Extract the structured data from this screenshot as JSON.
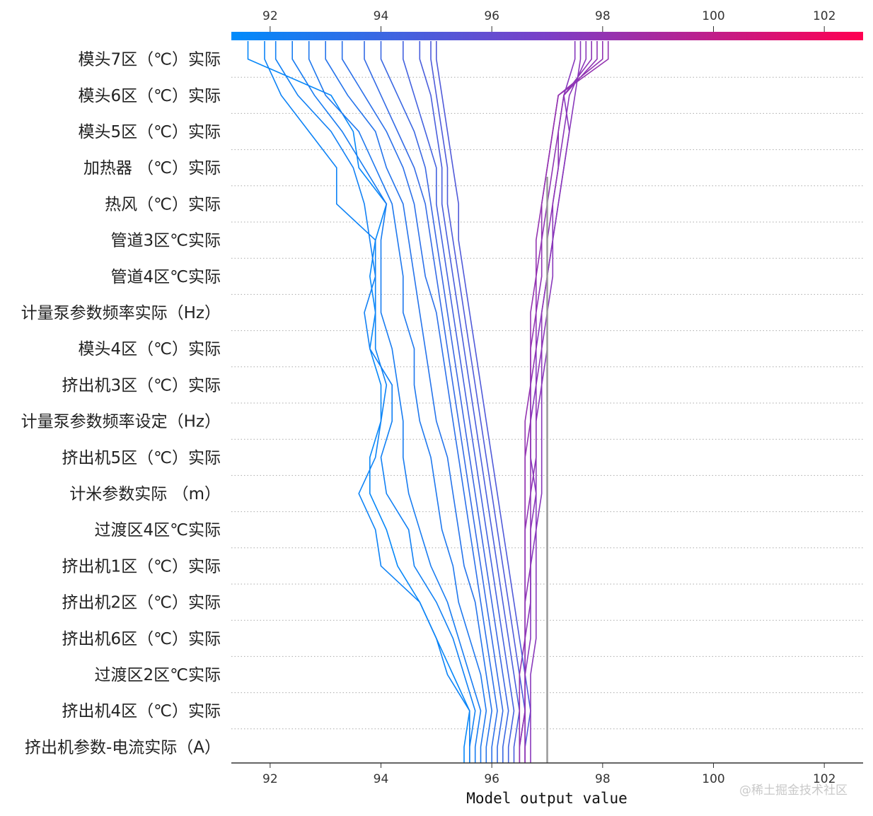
{
  "chart_data": {
    "type": "line",
    "title": "",
    "xlabel": "Model output value",
    "ylabel": "",
    "xlim": [
      91.3,
      102.7
    ],
    "x_ticks": [
      92,
      94,
      96,
      98,
      100,
      102
    ],
    "base_value": 97.0,
    "features": [
      "模头7区（℃）实际",
      "模头6区（℃）实际",
      "模头5区（℃）实际",
      "加热器 （℃）实际",
      "热风（℃）实际",
      "管道3区℃实际",
      "管道4区℃实际",
      "计量泵参数频率实际（Hz）",
      "模头4区（℃）实际",
      "挤出机3区（℃）实际",
      "计量泵参数频率设定（Hz）",
      "挤出机5区（℃）实际",
      "计米参数实际 （m）",
      "过渡区4区℃实际",
      "挤出机1区（℃）实际",
      "挤出机2区（℃）实际",
      "挤出机6区（℃）实际",
      "过渡区2区℃实际",
      "挤出机4区（℃）实际",
      "挤出机参数-电流实际（A）"
    ],
    "colorbar": {
      "range": [
        91.3,
        102.7
      ],
      "low_color": "#008bfb",
      "mid_color": "#7b3fc7",
      "high_color": "#ff0051"
    },
    "sample_paths": [
      [
        95.5,
        95.6,
        95.3,
        95.0,
        94.7,
        94.3,
        94.1,
        93.8,
        93.8,
        94.0,
        94.0,
        93.8,
        93.9,
        93.8,
        93.9,
        94.1,
        93.6,
        93.5,
        93.1,
        91.6
      ],
      [
        95.6,
        95.6,
        95.2,
        95.0,
        94.7,
        94.0,
        93.9,
        93.6,
        93.9,
        94.0,
        94.1,
        93.9,
        93.9,
        93.9,
        93.9,
        93.2,
        93.2,
        92.7,
        92.2,
        91.9
      ],
      [
        95.6,
        95.7,
        95.5,
        95.3,
        95.0,
        94.6,
        94.5,
        94.1,
        94.0,
        94.2,
        94.2,
        93.8,
        93.7,
        93.9,
        93.8,
        93.7,
        93.5,
        93.1,
        92.5,
        92.1
      ],
      [
        95.7,
        95.8,
        95.6,
        95.4,
        95.2,
        94.9,
        94.7,
        94.5,
        94.4,
        94.4,
        94.3,
        94.2,
        94.0,
        94.0,
        94.0,
        94.1,
        93.7,
        93.3,
        92.8,
        92.4
      ],
      [
        95.8,
        95.9,
        95.8,
        95.6,
        95.4,
        95.3,
        95.1,
        95.0,
        94.9,
        94.7,
        94.6,
        94.6,
        94.4,
        94.4,
        94.3,
        94.2,
        93.9,
        93.6,
        93.0,
        92.7
      ],
      [
        95.9,
        96.0,
        95.9,
        95.8,
        95.7,
        95.5,
        95.4,
        95.3,
        95.2,
        95.0,
        94.9,
        94.8,
        94.7,
        94.6,
        94.5,
        94.4,
        94.1,
        93.9,
        93.4,
        93.0
      ],
      [
        96.0,
        96.1,
        96.0,
        95.9,
        95.8,
        95.7,
        95.6,
        95.5,
        95.4,
        95.3,
        95.2,
        95.1,
        95.0,
        94.8,
        94.7,
        94.6,
        94.4,
        94.1,
        93.7,
        93.3
      ],
      [
        96.1,
        96.2,
        96.1,
        96.0,
        95.9,
        95.8,
        95.7,
        95.6,
        95.5,
        95.4,
        95.3,
        95.2,
        95.1,
        95.0,
        94.9,
        94.8,
        94.6,
        94.3,
        94.0,
        93.7
      ],
      [
        96.2,
        96.3,
        96.2,
        96.1,
        96.0,
        95.9,
        95.8,
        95.7,
        95.6,
        95.5,
        95.4,
        95.3,
        95.2,
        95.1,
        95.0,
        94.9,
        94.8,
        94.6,
        94.3,
        94.0
      ],
      [
        96.3,
        96.4,
        96.3,
        96.2,
        96.1,
        96.0,
        95.9,
        95.8,
        95.7,
        95.6,
        95.5,
        95.4,
        95.3,
        95.2,
        95.1,
        95.0,
        95.0,
        94.8,
        94.6,
        94.4
      ],
      [
        96.4,
        96.5,
        96.4,
        96.3,
        96.2,
        96.1,
        96.0,
        95.9,
        95.8,
        95.7,
        95.6,
        95.5,
        95.4,
        95.3,
        95.2,
        95.1,
        95.1,
        95.0,
        94.9,
        94.7
      ],
      [
        96.5,
        96.6,
        96.5,
        96.4,
        96.3,
        96.2,
        96.1,
        96.0,
        95.9,
        95.8,
        95.7,
        95.6,
        95.5,
        95.4,
        95.3,
        95.2,
        95.2,
        95.1,
        95.0,
        94.9
      ],
      [
        96.6,
        96.7,
        96.6,
        96.5,
        96.4,
        96.3,
        96.2,
        96.1,
        96.0,
        95.9,
        95.8,
        95.7,
        95.6,
        95.5,
        95.4,
        95.4,
        95.3,
        95.2,
        95.1,
        95.0
      ],
      [
        96.6,
        96.6,
        96.6,
        96.7,
        96.7,
        96.7,
        96.8,
        96.8,
        96.7,
        96.7,
        96.8,
        96.8,
        96.9,
        97.0,
        97.1,
        97.2,
        97.3,
        97.4,
        97.3,
        97.5
      ],
      [
        96.7,
        96.7,
        96.7,
        96.8,
        96.8,
        96.8,
        96.8,
        96.9,
        96.9,
        96.9,
        96.9,
        97.0,
        97.0,
        97.1,
        97.1,
        97.2,
        97.3,
        97.4,
        97.5,
        97.6
      ],
      [
        96.6,
        96.6,
        96.6,
        96.6,
        96.7,
        96.7,
        96.7,
        96.8,
        96.8,
        96.8,
        96.9,
        96.9,
        97.0,
        97.0,
        97.1,
        97.1,
        97.2,
        97.3,
        97.4,
        97.7
      ],
      [
        96.6,
        96.6,
        96.6,
        96.6,
        96.6,
        96.7,
        96.7,
        96.7,
        96.8,
        96.8,
        96.8,
        96.9,
        96.9,
        97.0,
        97.0,
        97.1,
        97.2,
        97.2,
        97.3,
        97.8
      ],
      [
        96.6,
        96.6,
        96.6,
        96.6,
        96.6,
        96.6,
        96.6,
        96.7,
        96.7,
        96.7,
        96.7,
        96.8,
        96.8,
        96.9,
        96.9,
        97.0,
        97.1,
        97.2,
        97.3,
        97.9
      ],
      [
        96.5,
        96.6,
        96.6,
        96.6,
        96.6,
        96.6,
        96.6,
        96.6,
        96.6,
        96.7,
        96.7,
        96.7,
        96.8,
        96.8,
        96.9,
        96.9,
        97.0,
        97.1,
        97.2,
        98.0
      ],
      [
        96.5,
        96.5,
        96.5,
        96.6,
        96.6,
        96.6,
        96.6,
        96.6,
        96.6,
        96.6,
        96.7,
        96.7,
        96.7,
        96.8,
        96.8,
        96.9,
        97.0,
        97.1,
        97.2,
        98.1
      ]
    ]
  },
  "watermark": "@稀土掘金技术社区"
}
